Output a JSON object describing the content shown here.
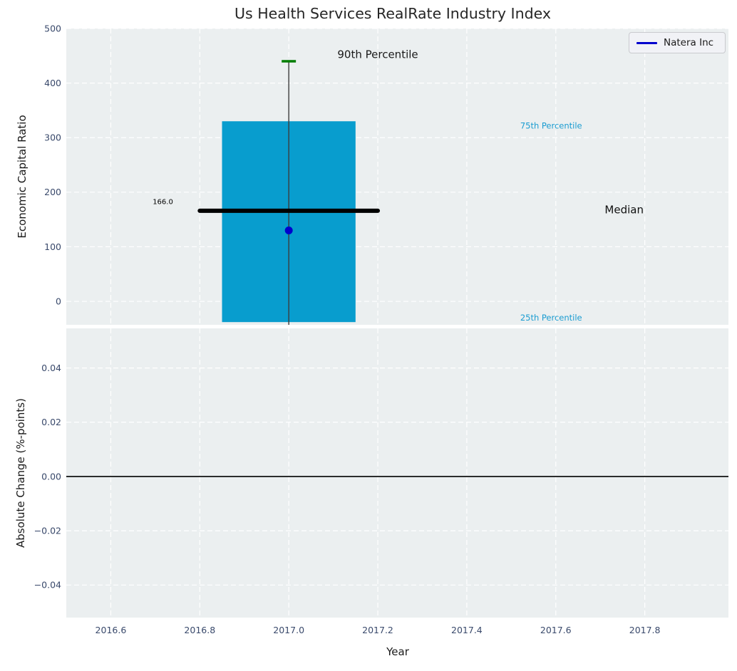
{
  "figure": {
    "axes_bg_color": "#ebeff0",
    "grid_color": "#ffffff",
    "tick_label_color": "#39496b",
    "text_color": "#1a1a1a"
  },
  "legend": {
    "label": "Natera Inc",
    "line_color": "#0000cd",
    "position": "upper right"
  },
  "chart_data": [
    {
      "type": "box",
      "title": "Us Health Services RealRate Industry Index",
      "ylabel": "Economic Capital Ratio",
      "xlabel": "",
      "xlim": [
        2016.5,
        2017.988
      ],
      "ylim": [
        -43,
        500
      ],
      "grid": true,
      "xticks": [
        2016.6,
        2016.8,
        2017.0,
        2017.2,
        2017.4,
        2017.6,
        2017.8
      ],
      "yticks": [
        0,
        100,
        200,
        300,
        400,
        500
      ],
      "ytick_labels": [
        "0",
        "100",
        "200",
        "300",
        "400",
        "500"
      ],
      "box": {
        "x": 2017.0,
        "box_left": 2016.85,
        "box_right": 2017.15,
        "q25": -38,
        "median": 166,
        "q75": 330,
        "p90": 440,
        "whisker_low": -43,
        "median_line_left": 2016.8,
        "median_line_right": 2017.2,
        "cap_half_width": 0.016,
        "box_color": "#089dce",
        "median_color": "#000000",
        "cap_color": "#007d00",
        "whisker_color": "#3c3c3c"
      },
      "series": [
        {
          "name": "Natera Inc",
          "color": "#0000cd",
          "marker": "circle",
          "points": [
            {
              "x": 2017.0,
              "y": 130
            }
          ]
        }
      ],
      "annotations": [
        {
          "text": "90th Percentile",
          "x": 2017.2,
          "y": 453,
          "color": "#1a1a1a",
          "size": 15,
          "anchor": "middle"
        },
        {
          "text": "166.0",
          "x": 2016.74,
          "y": 183,
          "color": "#000000",
          "size": 10,
          "anchor": "end"
        },
        {
          "text": "75th Percentile",
          "x": 2017.52,
          "y": 322,
          "color": "#1a9cd1",
          "size": 11.5,
          "anchor": "start"
        },
        {
          "text": "Median",
          "x": 2017.71,
          "y": 168,
          "color": "#111111",
          "size": 15,
          "anchor": "start"
        },
        {
          "text": "25th Percentile",
          "x": 2017.52,
          "y": -30,
          "color": "#1a9cd1",
          "size": 11.5,
          "anchor": "start"
        }
      ]
    },
    {
      "type": "line",
      "title": "",
      "ylabel": "Absolute Change (%-points)",
      "xlabel": "Year",
      "xlim": [
        2016.5,
        2017.988
      ],
      "ylim": [
        -0.052,
        0.0546
      ],
      "grid": true,
      "xticks": [
        2016.6,
        2016.8,
        2017.0,
        2017.2,
        2017.4,
        2017.6,
        2017.8
      ],
      "xtick_labels": [
        "2016.6",
        "2016.8",
        "2017.0",
        "2017.2",
        "2017.4",
        "2017.6",
        "2017.8"
      ],
      "yticks": [
        0.04,
        0.02,
        0.0,
        -0.02,
        -0.04
      ],
      "ytick_labels": [
        "0.04",
        "0.02",
        "0.00",
        "−0.02",
        "−0.04"
      ],
      "zero_line_y": 0.0,
      "zero_line_color": "#000000"
    }
  ]
}
